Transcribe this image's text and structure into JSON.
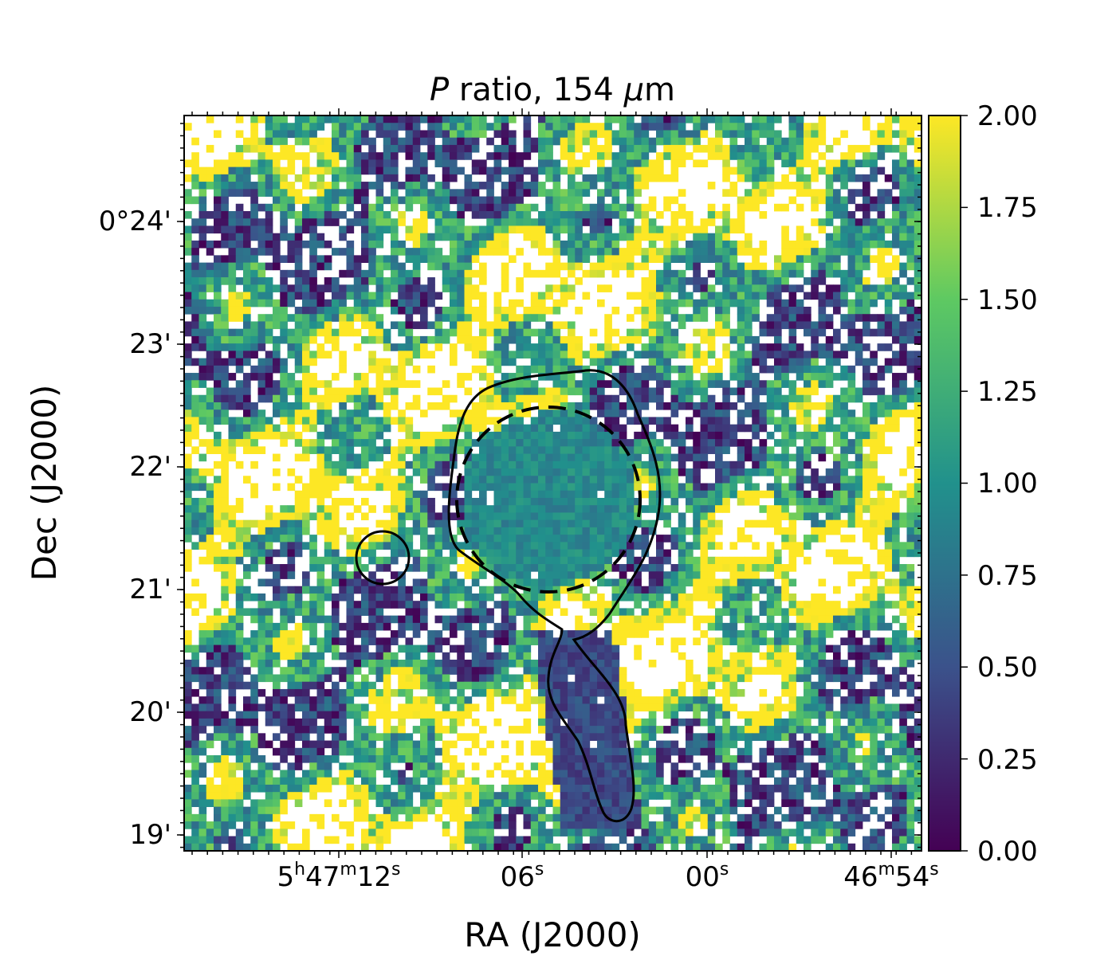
{
  "chart_data": {
    "type": "heatmap",
    "title_italic": "P",
    "title_rest": " ratio, 154 ",
    "title_mu": "μ",
    "title_unit": "m",
    "xlabel": "RA (J2000)",
    "ylabel": "Dec (J2000)",
    "x_ticks": [
      {
        "base": "5",
        "sup1": "h",
        "mid": "47",
        "sup2": "m",
        "num": "12",
        "sup3": "s"
      },
      {
        "num": "06",
        "sup3": "s"
      },
      {
        "num": "00",
        "sup3": "s"
      },
      {
        "mid": "46",
        "sup2": "m",
        "num": "54",
        "sup3": "s"
      }
    ],
    "y_ticks": [
      "0°24'",
      "23'",
      "22'",
      "21'",
      "20'",
      "19'"
    ],
    "colorbar": {
      "vmin": 0.0,
      "vmax": 2.0,
      "ticks": [
        "0.00",
        "0.25",
        "0.50",
        "0.75",
        "1.00",
        "1.25",
        "1.50",
        "1.75",
        "2.00"
      ],
      "colormap": "viridis",
      "stops": [
        "#440154",
        "#3b528b",
        "#21918c",
        "#5ec962",
        "#fde725"
      ]
    },
    "grid": false,
    "contours": [
      "solid outline around central core and southern filament",
      "dashed circle on core",
      "small solid circle to the east"
    ]
  }
}
